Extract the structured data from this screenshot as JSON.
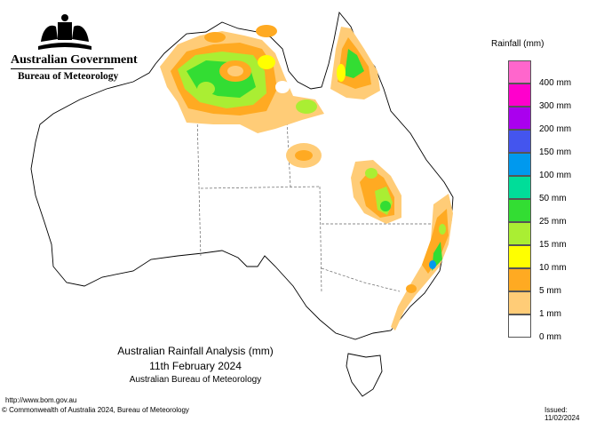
{
  "header": {
    "agency_name": "Australian Government",
    "bureau_name": "Bureau of Meteorology"
  },
  "map": {
    "title_line1": "Australian Rainfall Analysis (mm)",
    "title_line2": "11th February 2024",
    "title_line3": "Australian Bureau of Meteorology"
  },
  "legend": {
    "title": "Rainfall (mm)",
    "items": [
      {
        "label": "400 mm",
        "color": "#ff66cc"
      },
      {
        "label": "300 mm",
        "color": "#ff00cc"
      },
      {
        "label": "200 mm",
        "color": "#aa00ee"
      },
      {
        "label": "150 mm",
        "color": "#4455ee"
      },
      {
        "label": "100 mm",
        "color": "#0099ee"
      },
      {
        "label": "50 mm",
        "color": "#00dd99"
      },
      {
        "label": "25 mm",
        "color": "#33dd33"
      },
      {
        "label": "15 mm",
        "color": "#aaee33"
      },
      {
        "label": "10 mm",
        "color": "#ffff00"
      },
      {
        "label": "5 mm",
        "color": "#ffaa22"
      },
      {
        "label": "1 mm",
        "color": "#ffcc77"
      },
      {
        "label": "0 mm",
        "color": "#ffffff"
      }
    ]
  },
  "footer": {
    "url": "http://www.bom.gov.au",
    "copyright": "© Commonwealth of Australia 2024, Bureau of Meteorology",
    "issued": "Issued: 11/02/2024"
  }
}
